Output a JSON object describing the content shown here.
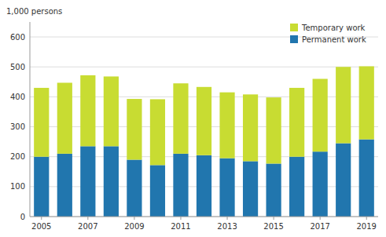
{
  "chart_data": {
    "type": "bar",
    "stacked": true,
    "ylabel": "1,000 persons",
    "categories": [
      "2005",
      null,
      "2007",
      null,
      "2009",
      null,
      "2011",
      null,
      "2013",
      null,
      "2015",
      null,
      "2017",
      null,
      "2019"
    ],
    "series": [
      {
        "name": "Permanent work",
        "color": "#2176ae",
        "values": [
          200,
          210,
          235,
          235,
          190,
          172,
          210,
          205,
          195,
          185,
          177,
          200,
          217,
          245,
          258
        ]
      },
      {
        "name": "Temporary work",
        "color": "#c8dc32",
        "values": [
          230,
          237,
          237,
          233,
          203,
          220,
          235,
          228,
          220,
          223,
          221,
          230,
          243,
          255,
          244
        ]
      }
    ],
    "ylim": [
      0,
      650
    ],
    "yticks": [
      0,
      100,
      200,
      300,
      400,
      500,
      600
    ],
    "grid": true,
    "legend": "upper right"
  }
}
